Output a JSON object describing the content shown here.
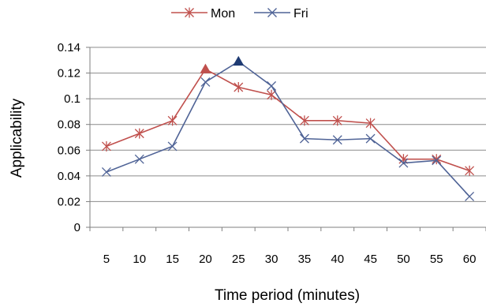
{
  "chart_data": {
    "type": "line",
    "title": "",
    "xlabel": "Time period (minutes)",
    "ylabel": "Applicability",
    "categories": [
      "5",
      "10",
      "15",
      "20",
      "25",
      "30",
      "35",
      "40",
      "45",
      "50",
      "55",
      "60"
    ],
    "ylim": [
      0,
      0.14
    ],
    "yticks": [
      "0",
      "0.02",
      "0.04",
      "0.06",
      "0.08",
      "0.1",
      "0.12",
      "0.14"
    ],
    "grid": true,
    "legend_position": "top-center",
    "series": [
      {
        "name": "Mon",
        "color": "#C0504D",
        "marker": "asterisk",
        "values": [
          0.063,
          0.073,
          0.083,
          0.123,
          0.109,
          0.103,
          0.083,
          0.083,
          0.081,
          0.053,
          0.053,
          0.044
        ],
        "highlight": {
          "index": 3,
          "marker": "triangle"
        }
      },
      {
        "name": "Fri",
        "color": "#4F6396",
        "marker": "x",
        "values": [
          0.043,
          0.053,
          0.063,
          0.113,
          0.129,
          0.11,
          0.069,
          0.068,
          0.069,
          0.05,
          0.052,
          0.024
        ],
        "highlight": {
          "index": 4,
          "marker": "triangle",
          "color": "#1F3B73"
        }
      }
    ]
  }
}
